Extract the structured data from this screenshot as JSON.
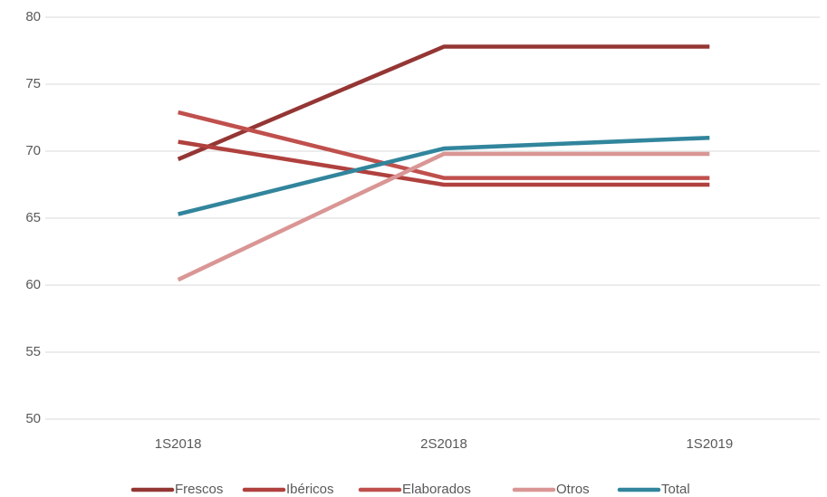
{
  "chart_data": {
    "type": "line",
    "categories": [
      "1S2018",
      "2S2018",
      "1S2019"
    ],
    "series": [
      {
        "name": "Frescos",
        "color": "#943634",
        "values": [
          69.4,
          77.8,
          77.8
        ]
      },
      {
        "name": "Ibéricos",
        "color": "#b0413e",
        "values": [
          70.7,
          67.5,
          67.5
        ]
      },
      {
        "name": "Elaborados",
        "color": "#c0504d",
        "values": [
          72.9,
          68.0,
          68.0
        ]
      },
      {
        "name": "Otros",
        "color": "#d99694",
        "values": [
          60.4,
          69.8,
          69.8
        ]
      },
      {
        "name": "Total",
        "color": "#31859c",
        "values": [
          65.3,
          70.2,
          71.0
        ]
      }
    ],
    "ylim": [
      50,
      80
    ],
    "yticks": [
      50,
      55,
      60,
      65,
      70,
      75,
      80
    ],
    "grid": true,
    "legend": "bottom"
  }
}
